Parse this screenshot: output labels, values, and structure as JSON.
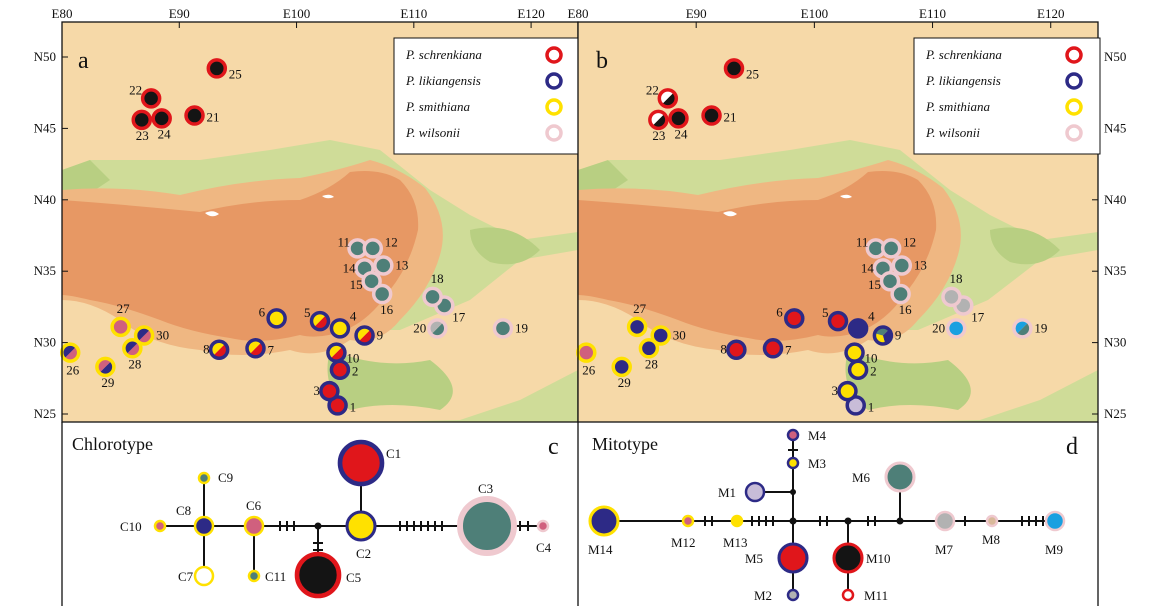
{
  "colors": {
    "schrenkiana": "#e0161b",
    "likiangensis": "#2d2a86",
    "smithiana": "#ffe100",
    "wilsonii": "#efc9cf",
    "haplo_red": "#e0161b",
    "haplo_navy": "#2d2a86",
    "haplo_yellow": "#ffe100",
    "haplo_teal": "#4e7f78",
    "haplo_black": "#141414",
    "haplo_pink": "#d0607e",
    "haplo_lavender": "#c8bcd8",
    "haplo_grey": "#b2b2b2",
    "haplo_blue": "#1aa0e0",
    "haplo_tan": "#d9b99a",
    "plateau_dark": "#e79864",
    "plateau_mid": "#efb782",
    "lowland_light": "#f6d9a8",
    "green_low": "#cfdc98",
    "green_lower": "#b8cf82"
  },
  "axes": {
    "x_ticks": [
      "E80",
      "E90",
      "E100",
      "E110",
      "E120"
    ],
    "y_ticks": [
      "N50",
      "N45",
      "N40",
      "N35",
      "N30",
      "N25"
    ]
  },
  "legend": [
    {
      "label": "P. schrenkiana",
      "color_key": "schrenkiana"
    },
    {
      "label": "P. likiangensis",
      "color_key": "likiangensis"
    },
    {
      "label": "P. smithiana",
      "color_key": "smithiana"
    },
    {
      "label": "P. wilsonii",
      "color_key": "wilsonii"
    }
  ],
  "panels": {
    "a": {
      "letter": "a"
    },
    "b": {
      "letter": "b"
    },
    "c": {
      "letter": "c",
      "title": "Chlorotype"
    },
    "d": {
      "letter": "d",
      "title": "Mitotype"
    }
  },
  "sites": [
    {
      "id": "1",
      "lon": 103.5,
      "lat": 25.6,
      "species": "likiangensis",
      "cp": [
        "red"
      ],
      "mt": [
        "lavender"
      ]
    },
    {
      "id": "2",
      "lon": 103.7,
      "lat": 28.1,
      "species": "likiangensis",
      "cp": [
        "red"
      ],
      "mt": [
        "yellow"
      ]
    },
    {
      "id": "3",
      "lon": 102.8,
      "lat": 26.6,
      "species": "likiangensis",
      "cp": [
        "red"
      ],
      "mt": [
        "yellow"
      ]
    },
    {
      "id": "4",
      "lon": 103.7,
      "lat": 31.0,
      "species": "likiangensis",
      "cp": [
        "yellow"
      ],
      "mt": [
        "navy"
      ]
    },
    {
      "id": "5",
      "lon": 102.0,
      "lat": 31.5,
      "species": "likiangensis",
      "cp": [
        "red",
        "yellow"
      ],
      "mt": [
        "red"
      ]
    },
    {
      "id": "6",
      "lon": 98.3,
      "lat": 31.7,
      "species": "likiangensis",
      "cp": [
        "yellow"
      ],
      "mt": [
        "red"
      ]
    },
    {
      "id": "7",
      "lon": 96.5,
      "lat": 29.6,
      "species": "likiangensis",
      "cp": [
        "red",
        "yellow"
      ],
      "mt": [
        "red"
      ]
    },
    {
      "id": "8",
      "lon": 93.4,
      "lat": 29.5,
      "species": "likiangensis",
      "cp": [
        "red",
        "yellow"
      ],
      "mt": [
        "red"
      ]
    },
    {
      "id": "9",
      "lon": 105.8,
      "lat": 30.5,
      "species": "likiangensis",
      "cp": [
        "red",
        "yellow"
      ],
      "mt": [
        "navy",
        "yellow",
        "teal"
      ]
    },
    {
      "id": "10",
      "lon": 103.4,
      "lat": 29.3,
      "species": "likiangensis",
      "cp": [
        "red",
        "yellow"
      ],
      "mt": [
        "yellow"
      ]
    },
    {
      "id": "11",
      "lon": 105.2,
      "lat": 36.6,
      "species": "wilsonii",
      "cp": [
        "teal"
      ],
      "mt": [
        "teal"
      ]
    },
    {
      "id": "12",
      "lon": 106.5,
      "lat": 36.6,
      "species": "wilsonii",
      "cp": [
        "teal"
      ],
      "mt": [
        "teal"
      ]
    },
    {
      "id": "13",
      "lon": 107.4,
      "lat": 35.4,
      "species": "wilsonii",
      "cp": [
        "teal"
      ],
      "mt": [
        "teal"
      ]
    },
    {
      "id": "14",
      "lon": 105.8,
      "lat": 35.2,
      "species": "wilsonii",
      "cp": [
        "teal"
      ],
      "mt": [
        "teal"
      ]
    },
    {
      "id": "15",
      "lon": 106.4,
      "lat": 34.3,
      "species": "wilsonii",
      "cp": [
        "teal"
      ],
      "mt": [
        "teal"
      ]
    },
    {
      "id": "16",
      "lon": 107.3,
      "lat": 33.4,
      "species": "wilsonii",
      "cp": [
        "teal"
      ],
      "mt": [
        "teal"
      ]
    },
    {
      "id": "17",
      "lon": 112.6,
      "lat": 32.6,
      "species": "wilsonii",
      "cp": [
        "teal"
      ],
      "mt": [
        "grey"
      ]
    },
    {
      "id": "18",
      "lon": 111.6,
      "lat": 33.2,
      "species": "wilsonii",
      "cp": [
        "teal"
      ],
      "mt": [
        "grey"
      ]
    },
    {
      "id": "19",
      "lon": 117.6,
      "lat": 31.0,
      "species": "wilsonii",
      "cp": [
        "teal"
      ],
      "mt": [
        "teal",
        "blue"
      ]
    },
    {
      "id": "20",
      "lon": 112.0,
      "lat": 31.0,
      "species": "wilsonii",
      "cp": [
        "teal",
        "grey"
      ],
      "mt": [
        "blue"
      ]
    },
    {
      "id": "21",
      "lon": 91.3,
      "lat": 45.9,
      "species": "schrenkiana",
      "cp": [
        "black"
      ],
      "mt": [
        "black"
      ]
    },
    {
      "id": "22",
      "lon": 87.6,
      "lat": 47.1,
      "species": "schrenkiana",
      "cp": [
        "black"
      ],
      "mt": [
        "black",
        "white"
      ]
    },
    {
      "id": "23",
      "lon": 86.8,
      "lat": 45.6,
      "species": "schrenkiana",
      "cp": [
        "black"
      ],
      "mt": [
        "black",
        "white"
      ]
    },
    {
      "id": "24",
      "lon": 88.5,
      "lat": 45.7,
      "species": "schrenkiana",
      "cp": [
        "black"
      ],
      "mt": [
        "black"
      ]
    },
    {
      "id": "25",
      "lon": 93.2,
      "lat": 49.2,
      "species": "schrenkiana",
      "cp": [
        "black"
      ],
      "mt": [
        "black"
      ]
    },
    {
      "id": "26",
      "lon": 80.7,
      "lat": 29.3,
      "species": "smithiana",
      "cp": [
        "pink",
        "navy"
      ],
      "mt": [
        "pink"
      ]
    },
    {
      "id": "27",
      "lon": 85.0,
      "lat": 31.1,
      "species": "smithiana",
      "cp": [
        "pink"
      ],
      "mt": [
        "navy"
      ]
    },
    {
      "id": "28",
      "lon": 86.0,
      "lat": 29.6,
      "species": "smithiana",
      "cp": [
        "pink",
        "navy"
      ],
      "mt": [
        "navy"
      ]
    },
    {
      "id": "29",
      "lon": 83.7,
      "lat": 28.3,
      "species": "smithiana",
      "cp": [
        "navy",
        "pink"
      ],
      "mt": [
        "navy"
      ]
    },
    {
      "id": "30",
      "lon": 87.0,
      "lat": 30.5,
      "species": "smithiana",
      "cp": [
        "pink",
        "navy"
      ],
      "mt": [
        "navy"
      ]
    }
  ],
  "chlorotype_nodes": [
    {
      "label": "C1",
      "fill": "red",
      "ring": "navy",
      "size": "large"
    },
    {
      "label": "C2",
      "fill": "yellow",
      "ring": "navy",
      "size": "medium"
    },
    {
      "label": "C3",
      "fill": "teal",
      "ring": "wilsonii",
      "size": "xlarge"
    },
    {
      "label": "C4",
      "fill": "pink",
      "ring": "wilsonii",
      "size": "tiny"
    },
    {
      "label": "C5",
      "fill": "black",
      "ring": "red",
      "size": "large"
    },
    {
      "label": "C6",
      "fill": "pink",
      "ring": "yellow",
      "size": "small"
    },
    {
      "label": "C7",
      "fill": "white",
      "ring": "yellow",
      "size": "small"
    },
    {
      "label": "C8",
      "fill": "navy",
      "ring": "yellow",
      "size": "small"
    },
    {
      "label": "C9",
      "fill": "teal",
      "ring": "yellow",
      "size": "tiny"
    },
    {
      "label": "C10",
      "fill": "pink",
      "ring": "yellow",
      "size": "tiny"
    },
    {
      "label": "C11",
      "fill": "teal",
      "ring": "yellow",
      "size": "tiny"
    }
  ],
  "mitotype_nodes": [
    {
      "label": "M1",
      "fill": "lavender",
      "ring": "navy",
      "size": "small"
    },
    {
      "label": "M2",
      "fill": "grey",
      "ring": "navy",
      "size": "tiny"
    },
    {
      "label": "M3",
      "fill": "yellow",
      "ring": "navy",
      "size": "tiny"
    },
    {
      "label": "M4",
      "fill": "pink",
      "ring": "navy",
      "size": "tiny"
    },
    {
      "label": "M5",
      "fill": "red",
      "ring": "navy",
      "size": "medium"
    },
    {
      "label": "M6",
      "fill": "teal",
      "ring": "wilsonii",
      "size": "medium"
    },
    {
      "label": "M7",
      "fill": "grey",
      "ring": "wilsonii",
      "size": "small"
    },
    {
      "label": "M8",
      "fill": "tan",
      "ring": "wilsonii",
      "size": "tiny"
    },
    {
      "label": "M9",
      "fill": "blue",
      "ring": "wilsonii",
      "size": "small"
    },
    {
      "label": "M10",
      "fill": "black",
      "ring": "red",
      "size": "medium"
    },
    {
      "label": "M11",
      "fill": "white",
      "ring": "red",
      "size": "tiny"
    },
    {
      "label": "M12",
      "fill": "pink",
      "ring": "yellow",
      "size": "tiny"
    },
    {
      "label": "M13",
      "fill": "yellow",
      "ring": "yellow",
      "size": "tiny"
    },
    {
      "label": "M14",
      "fill": "navy",
      "ring": "yellow",
      "size": "medium"
    }
  ]
}
